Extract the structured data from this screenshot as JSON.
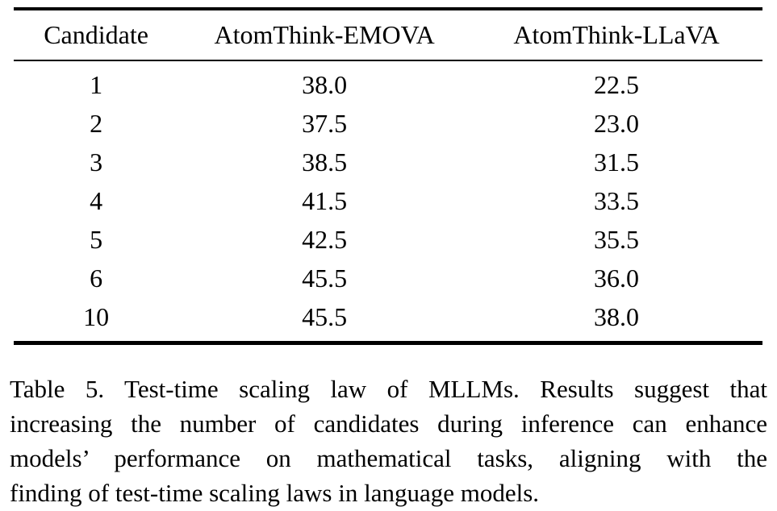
{
  "table": {
    "columns": [
      "Candidate",
      "AtomThink-EMOVA",
      "AtomThink-LLaVA"
    ],
    "rows": [
      {
        "candidate": "1",
        "emova": "38.0",
        "llava": "22.5"
      },
      {
        "candidate": "2",
        "emova": "37.5",
        "llava": "23.0"
      },
      {
        "candidate": "3",
        "emova": "38.5",
        "llava": "31.5"
      },
      {
        "candidate": "4",
        "emova": "41.5",
        "llava": "33.5"
      },
      {
        "candidate": "5",
        "emova": "42.5",
        "llava": "35.5"
      },
      {
        "candidate": "6",
        "emova": "45.5",
        "llava": "36.0"
      },
      {
        "candidate": "10",
        "emova": "45.5",
        "llava": "38.0"
      }
    ]
  },
  "caption": {
    "label": "Table 5.",
    "lines": [
      "Table 5.  Test-time scaling law of MLLMs.  Results suggest that",
      "increasing the number of candidates during inference can enhance",
      "models’ performance on mathematical tasks, aligning with the",
      "finding of test-time scaling laws in language models."
    ]
  },
  "colors": {
    "text": "#000000",
    "background": "#ffffff",
    "rule": "#000000"
  }
}
